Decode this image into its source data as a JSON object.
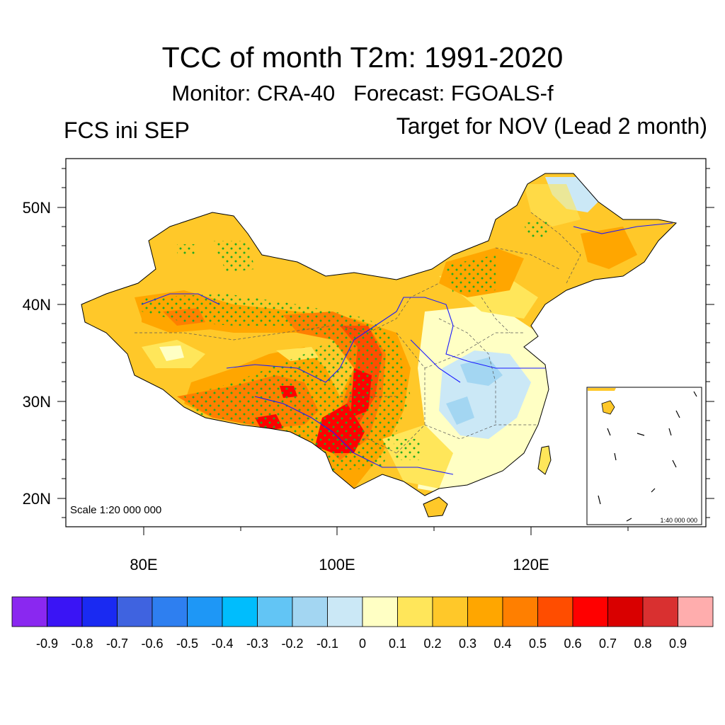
{
  "header": {
    "title": "TCC of month T2m: 1991-2020",
    "subtitle": "Monitor: CRA-40   Forecast: FGOALS-f",
    "left_label": "FCS ini SEP",
    "right_label": "Target for NOV (Lead 2 month)"
  },
  "map": {
    "lat_ticks": [
      "50N",
      "40N",
      "30N",
      "20N"
    ],
    "lon_ticks": [
      "80E",
      "100E",
      "120E"
    ],
    "scale_label": "Scale 1:20 000 000",
    "inset_scale_label": "1:40 000 000"
  },
  "colorbar": {
    "labels": [
      "-0.9",
      "-0.8",
      "-0.7",
      "-0.6",
      "-0.5",
      "-0.4",
      "-0.3",
      "-0.2",
      "-0.1",
      "0",
      "0.1",
      "0.2",
      "0.3",
      "0.4",
      "0.5",
      "0.6",
      "0.7",
      "0.8",
      "0.9"
    ],
    "colors": [
      "#8a28f0",
      "#3a14f5",
      "#1a2af2",
      "#3f63e0",
      "#2e7ff0",
      "#1e97f6",
      "#00bdfd",
      "#62c5f5",
      "#a3d6f2",
      "#cbe8f6",
      "#ffffc4",
      "#ffe65a",
      "#ffc829",
      "#ffa600",
      "#ff7f00",
      "#ff4d00",
      "#ff0000",
      "#d90000",
      "#d93030",
      "#ffadad"
    ]
  }
}
